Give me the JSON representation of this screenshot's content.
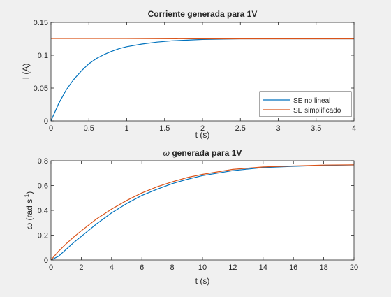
{
  "colors": {
    "figure_bg": "#f0f0f0",
    "axes_bg": "#ffffff",
    "axis": "#262626",
    "series_blue": "#0072bd",
    "series_orange": "#d95319"
  },
  "chart_data": [
    {
      "type": "line",
      "title": "Corriente generada para 1V",
      "xlabel": "t (s)",
      "ylabel": "I (A)",
      "xlim": [
        0,
        4
      ],
      "ylim": [
        0,
        0.15
      ],
      "xticks": [
        0,
        0.5,
        1,
        1.5,
        2,
        2.5,
        3,
        3.5,
        4
      ],
      "xtick_labels": [
        "0",
        "0.5",
        "1",
        "1.5",
        "2",
        "2.5",
        "3",
        "3.5",
        "4"
      ],
      "yticks": [
        0,
        0.05,
        0.1,
        0.15
      ],
      "ytick_labels": [
        "0",
        "0.05",
        "0.1",
        "0.15"
      ],
      "grid": false,
      "legend": "bottom-right",
      "series": [
        {
          "name": "SE no lineal",
          "color": "#0072bd",
          "x": [
            0,
            0.1,
            0.2,
            0.3,
            0.4,
            0.5,
            0.6,
            0.7,
            0.8,
            0.9,
            1.0,
            1.2,
            1.4,
            1.6,
            1.8,
            2.0,
            2.5,
            3.0,
            3.5,
            4.0
          ],
          "y": [
            0,
            0.026,
            0.047,
            0.063,
            0.076,
            0.087,
            0.095,
            0.101,
            0.106,
            0.11,
            0.113,
            0.117,
            0.12,
            0.122,
            0.123,
            0.124,
            0.125,
            0.125,
            0.125,
            0.125
          ]
        },
        {
          "name": "SE simplificado",
          "color": "#d95319",
          "x": [
            0,
            1,
            2,
            3,
            4
          ],
          "y": [
            0.1255,
            0.1255,
            0.125,
            0.125,
            0.125
          ]
        }
      ]
    },
    {
      "type": "line",
      "title": "ω generada para 1V",
      "title_symbol": "ω",
      "title_rest": " generada para 1V",
      "xlabel": "t (s)",
      "ylabel": "ω (rad s⁻¹)",
      "ylabel_symbol": "ω",
      "ylabel_main": " (rad s",
      "ylabel_sup": "-1",
      "ylabel_close": ")",
      "xlim": [
        0,
        20
      ],
      "ylim": [
        0,
        0.8
      ],
      "xticks": [
        0,
        2,
        4,
        6,
        8,
        10,
        12,
        14,
        16,
        18,
        20
      ],
      "xtick_labels": [
        "0",
        "2",
        "4",
        "6",
        "8",
        "10",
        "12",
        "14",
        "16",
        "18",
        "20"
      ],
      "yticks": [
        0,
        0.2,
        0.4,
        0.6,
        0.8
      ],
      "ytick_labels": [
        "0",
        "0.2",
        "0.4",
        "0.6",
        "0.8"
      ],
      "grid": false,
      "series": [
        {
          "color": "#0072bd",
          "x": [
            0,
            0.5,
            1,
            1.5,
            2,
            3,
            4,
            5,
            6,
            7,
            8,
            9,
            10,
            12,
            14,
            16,
            18,
            20
          ],
          "y": [
            0,
            0.03,
            0.085,
            0.14,
            0.19,
            0.29,
            0.38,
            0.455,
            0.52,
            0.57,
            0.615,
            0.65,
            0.68,
            0.72,
            0.745,
            0.755,
            0.763,
            0.766
          ]
        },
        {
          "color": "#d95319",
          "x": [
            0,
            0.5,
            1,
            1.5,
            2,
            3,
            4,
            5,
            6,
            7,
            8,
            9,
            10,
            12,
            14,
            16,
            18,
            20
          ],
          "y": [
            0,
            0.07,
            0.13,
            0.185,
            0.235,
            0.33,
            0.41,
            0.48,
            0.54,
            0.59,
            0.63,
            0.665,
            0.69,
            0.73,
            0.75,
            0.758,
            0.765,
            0.767
          ]
        }
      ]
    }
  ]
}
